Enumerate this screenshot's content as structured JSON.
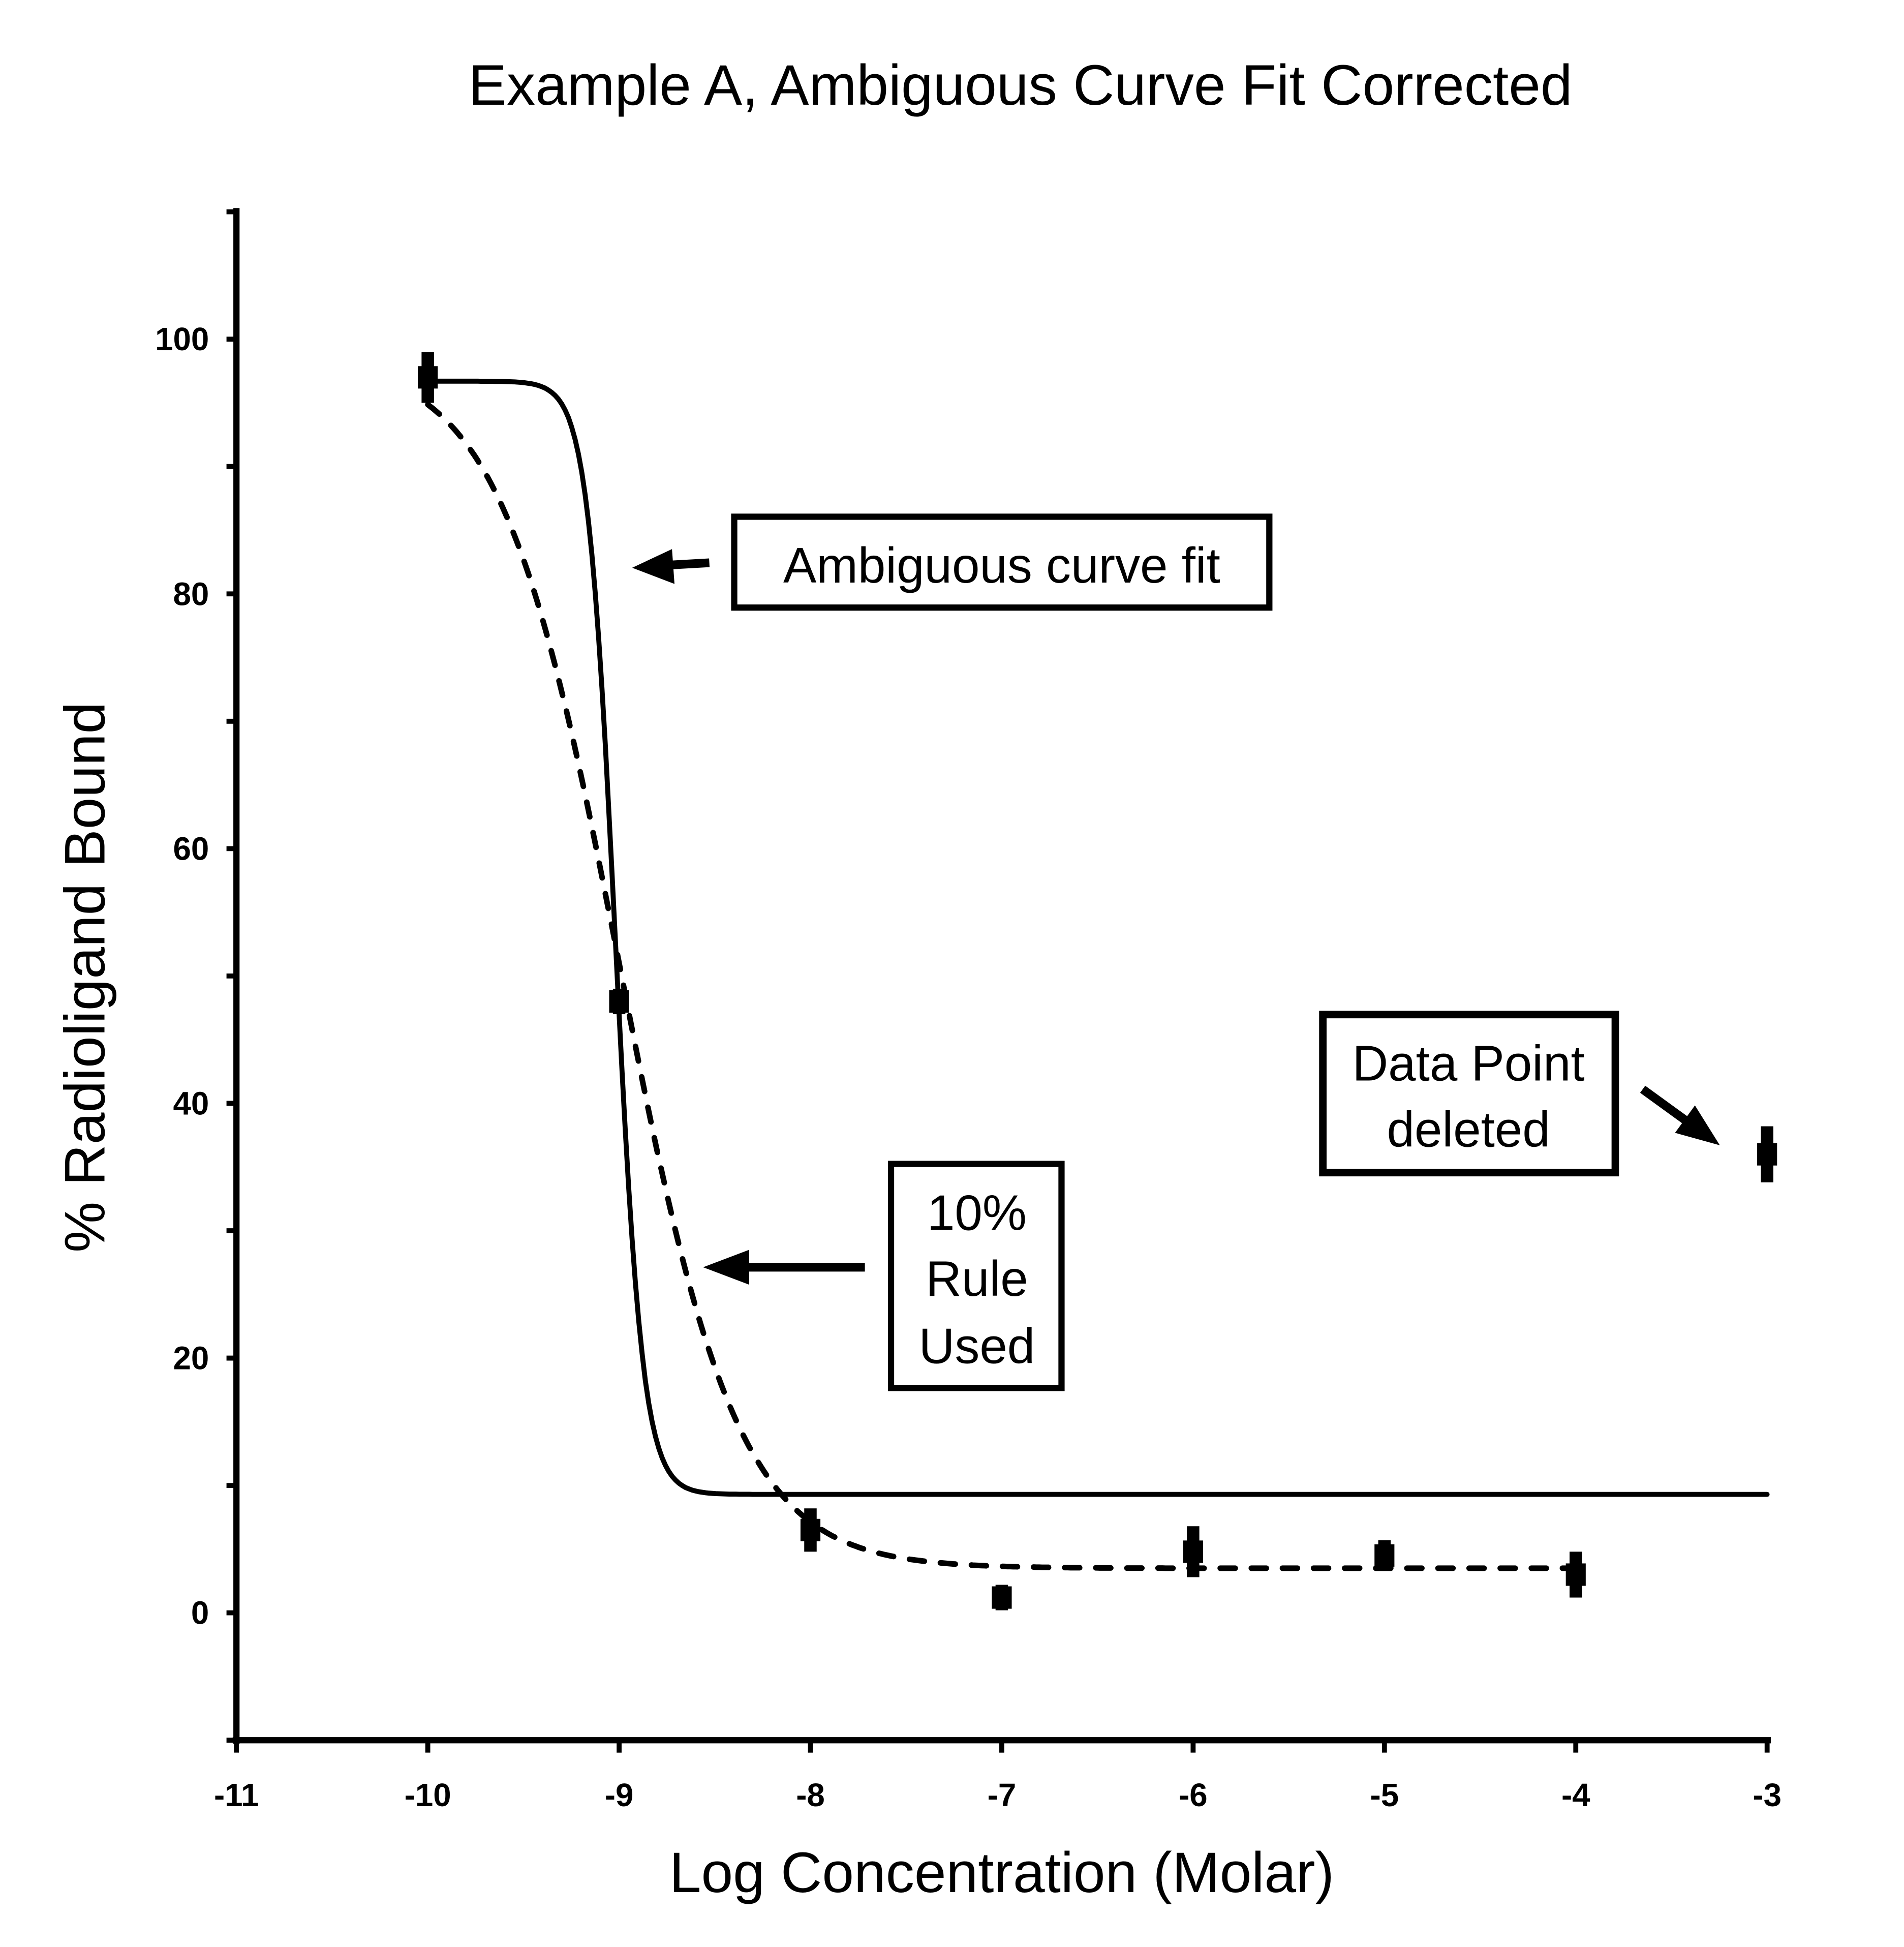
{
  "chart_data": {
    "type": "scatter",
    "title": "Example A,  Ambiguous Curve Fit Corrected",
    "xlabel": "Log Concentration (Molar)",
    "ylabel": "% Radioligand Bound",
    "xlim": [
      -11,
      -3
    ],
    "ylim": [
      -10,
      110
    ],
    "x_ticks": [
      "-11",
      "-10",
      "-9",
      "-8",
      "-7",
      "-6",
      "-5",
      "-4",
      "-3"
    ],
    "y_ticks": [
      "0",
      "20",
      "40",
      "60",
      "80",
      "100"
    ],
    "grid": false,
    "points": [
      {
        "x": -10,
        "y": 97,
        "err": 2.0
      },
      {
        "x": -9,
        "y": 48,
        "err": 1.0
      },
      {
        "x": -8,
        "y": 6.5,
        "err": 1.7
      },
      {
        "x": -7,
        "y": 1.2,
        "err": 1.0
      },
      {
        "x": -6,
        "y": 4.8,
        "err": 2.0
      },
      {
        "x": -5,
        "y": 4.5,
        "err": 1.2
      },
      {
        "x": -4,
        "y": 3.0,
        "err": 1.8
      },
      {
        "x": -3,
        "y": 36,
        "err": 2.2
      }
    ],
    "curves": [
      {
        "name": "Ambiguous curve fit",
        "style": "solid",
        "top": 96.7,
        "bottom": 9.3,
        "logIC50": -9.02,
        "hill": 6,
        "x_range": [
          -10,
          -3
        ]
      },
      {
        "name": "10% Rule Used",
        "style": "dashed",
        "top": 98.5,
        "bottom": 3.5,
        "logIC50": -9.0,
        "hill": 1.4,
        "x_range": [
          -10,
          -4
        ]
      }
    ],
    "annotations": {
      "ambiguous": "Ambiguous curve fit",
      "rule": [
        "10%",
        "Rule",
        "Used"
      ],
      "deleted": [
        "Data Point",
        "deleted"
      ]
    }
  }
}
